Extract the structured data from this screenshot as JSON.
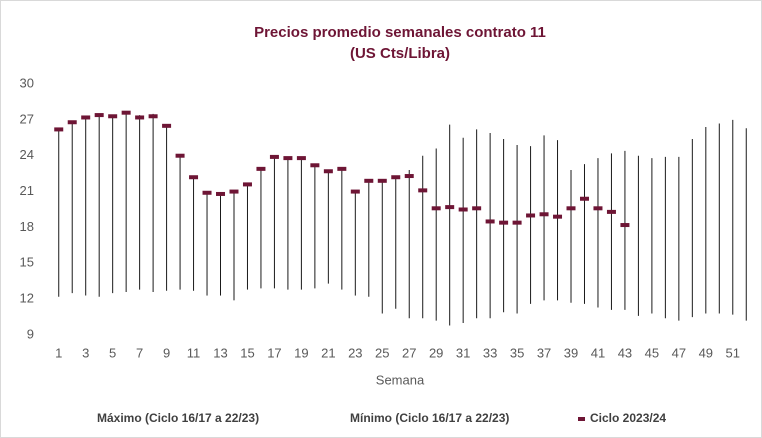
{
  "chart_data": {
    "type": "hilo",
    "title": "Precios promedio semanales contrato 11",
    "subtitle": "(US Cts/Libra)",
    "x_label": "Semana",
    "categories": [
      1,
      null,
      3,
      null,
      5,
      null,
      7,
      null,
      9,
      null,
      11,
      null,
      13,
      null,
      15,
      null,
      17,
      null,
      19,
      null,
      21,
      null,
      23,
      null,
      25,
      null,
      27,
      null,
      29,
      null,
      31,
      null,
      33,
      null,
      35,
      null,
      37,
      null,
      39,
      null,
      41,
      null,
      43,
      null,
      45,
      null,
      47,
      null,
      49,
      null,
      51,
      null
    ],
    "series": [
      {
        "name": "Máximo (Ciclo 16/17 a 22/23)",
        "color": "#1a1a1a",
        "values": [
          26.3,
          26.9,
          27.3,
          27.5,
          27.4,
          27.7,
          27.4,
          27.5,
          26.6,
          24.1,
          22.3,
          21.0,
          20.9,
          21.1,
          21.7,
          23.0,
          24.0,
          23.9,
          23.9,
          23.3,
          22.8,
          23.0,
          21.1,
          22.0,
          22.0,
          22.3,
          22.8,
          24.0,
          24.6,
          26.6,
          25.5,
          26.2,
          25.9,
          25.4,
          24.9,
          24.8,
          25.7,
          25.3,
          22.8,
          23.3,
          23.8,
          24.2,
          24.4,
          24.0,
          23.8,
          23.9,
          23.9,
          25.4,
          26.4,
          26.7,
          27.0,
          26.3
        ]
      },
      {
        "name": "Mínimo (Ciclo 16/17 a 22/23)",
        "color": "#1a1a1a",
        "values": [
          12.2,
          12.5,
          12.3,
          12.2,
          12.5,
          12.6,
          12.8,
          12.6,
          12.7,
          12.8,
          12.7,
          12.3,
          12.3,
          11.9,
          12.8,
          12.9,
          12.9,
          12.8,
          12.8,
          12.9,
          13.3,
          12.8,
          12.3,
          12.2,
          10.8,
          11.2,
          10.4,
          10.4,
          10.2,
          9.8,
          10.0,
          10.4,
          10.4,
          10.9,
          10.8,
          11.6,
          11.9,
          11.9,
          11.7,
          11.6,
          11.3,
          11.1,
          11.1,
          10.6,
          10.8,
          10.4,
          10.2,
          10.5,
          10.8,
          10.8,
          10.7,
          10.2
        ]
      },
      {
        "name": "Ciclo 2023/24",
        "color": "#6e1535",
        "marker": "dash",
        "values": [
          26.2,
          26.8,
          27.2,
          27.4,
          27.3,
          27.6,
          27.2,
          27.3,
          26.5,
          24.0,
          22.2,
          20.9,
          20.8,
          21.0,
          21.6,
          22.9,
          23.9,
          23.8,
          23.8,
          23.2,
          22.7,
          22.9,
          21.0,
          21.9,
          21.9,
          22.2,
          22.3,
          21.1,
          19.6,
          19.7,
          19.5,
          19.6,
          18.5,
          18.4,
          18.4,
          19.0,
          19.1,
          18.9,
          19.6,
          20.4,
          19.6,
          19.3,
          18.2,
          null,
          null,
          null,
          null,
          null,
          null,
          null,
          null,
          null
        ]
      }
    ],
    "ylim": [
      9,
      30
    ],
    "yticks": [
      9,
      12,
      15,
      18,
      21,
      24,
      27,
      30
    ],
    "grid": false
  }
}
